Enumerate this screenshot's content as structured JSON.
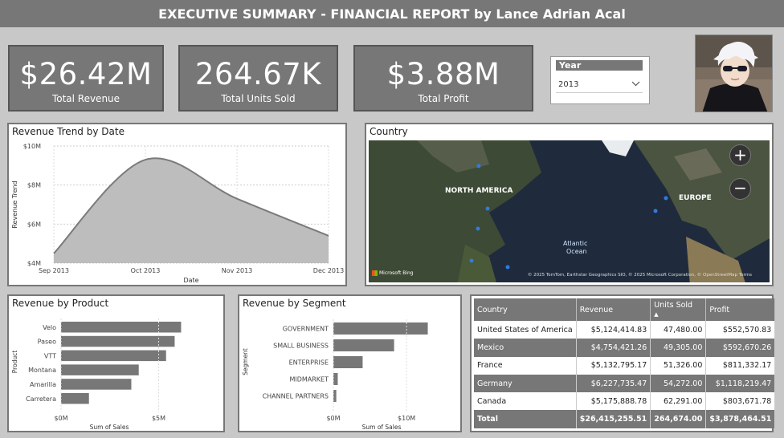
{
  "header": {
    "title": "EXECUTIVE SUMMARY - FINANCIAL REPORT by Lance Adrian Acal"
  },
  "kpis": [
    {
      "value": "$26.42M",
      "label": "Total Revenue"
    },
    {
      "value": "264.67K",
      "label": "Total Units Sold"
    },
    {
      "value": "$3.88M",
      "label": "Total Profit"
    }
  ],
  "slicer": {
    "title": "Year",
    "selected": "2013"
  },
  "revenue_trend": {
    "title": "Revenue Trend by Date",
    "chart_data": {
      "type": "area",
      "x": [
        "Sep 2013",
        "Oct 2013",
        "Nov 2013",
        "Dec 2013"
      ],
      "y": [
        4.5,
        9.3,
        7.3,
        5.4
      ],
      "xlabel": "Date",
      "ylabel": "Revenue Trend",
      "ylim": [
        4,
        10
      ],
      "yticks": [
        "$10M",
        "$8M",
        "$6M",
        "$4M"
      ],
      "grid": true,
      "color": "#bdbdbd"
    }
  },
  "country_map": {
    "title": "Country",
    "labels": [
      "NORTH AMERICA",
      "EUROPE",
      "Atlantic",
      "Ocean"
    ],
    "attribution": "© 2025 TomTom, Earthstar Geographics SIO, © 2025 Microsoft Corporation, © OpenStreetMap  Terms",
    "brand": "Microsoft Bing"
  },
  "revenue_by_product": {
    "title": "Revenue by Product",
    "chart_data": {
      "type": "bar",
      "orientation": "horizontal",
      "categories": [
        "Velo",
        "Paseo",
        "VTT",
        "Montana",
        "Amarilla",
        "Carretera"
      ],
      "values": [
        6.15,
        5.82,
        5.38,
        3.98,
        3.6,
        1.43
      ],
      "xlabel": "Sum of Sales",
      "ylabel": "Product",
      "xticks": [
        "$0M",
        "$5M"
      ],
      "xlim": [
        0,
        10
      ]
    }
  },
  "revenue_by_segment": {
    "title": "Revenue by Segment",
    "chart_data": {
      "type": "bar",
      "orientation": "horizontal",
      "categories": [
        "GOVERNMENT",
        "SMALL BUSINESS",
        "ENTERPRISE",
        "MIDMARKET",
        "CHANNEL PARTNERS"
      ],
      "values": [
        12.9,
        8.3,
        4.0,
        0.6,
        0.4
      ],
      "xlabel": "Sum of Sales",
      "ylabel": "Segment",
      "xticks": [
        "$0M",
        "$10M"
      ],
      "xlim": [
        0,
        18
      ]
    }
  },
  "country_table": {
    "columns": [
      "Country",
      "Revenue",
      "Units Sold",
      "Profit"
    ],
    "rows": [
      [
        "United States of America",
        "$5,124,414.83",
        "47,480.00",
        "$552,570.83"
      ],
      [
        "Mexico",
        "$4,754,421.26",
        "49,305.00",
        "$592,670.26"
      ],
      [
        "France",
        "$5,132,795.17",
        "51,326.00",
        "$811,332.17"
      ],
      [
        "Germany",
        "$6,227,735.47",
        "54,272.00",
        "$1,118,219.47"
      ],
      [
        "Canada",
        "$5,175,888.78",
        "62,291.00",
        "$803,671.78"
      ]
    ],
    "total": [
      "Total",
      "$26,415,255.51",
      "264,674.00",
      "$3,878,464.51"
    ]
  }
}
